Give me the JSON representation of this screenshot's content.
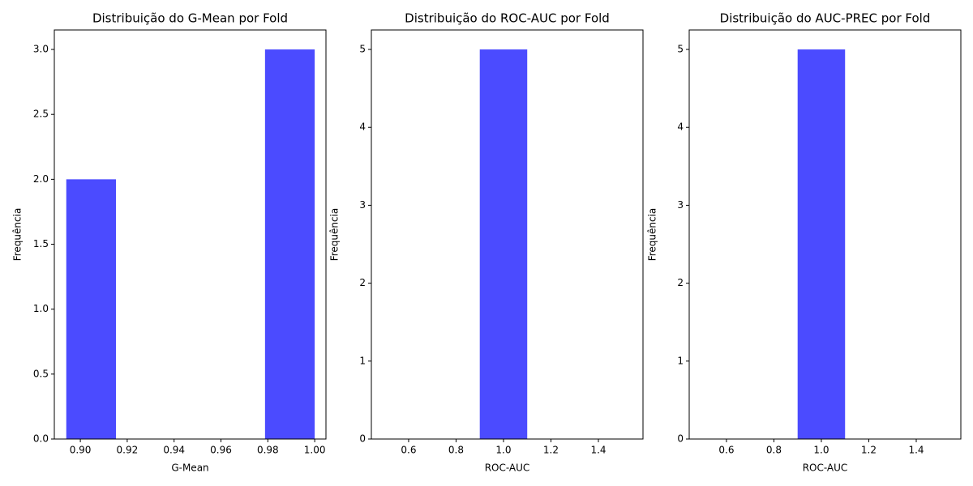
{
  "chart_data": [
    {
      "type": "histogram",
      "title": "Distribuição do G-Mean por Fold",
      "x_label": "G-Mean",
      "y_label": "Frequência",
      "color": "#4b4bff",
      "bins": [
        0.894,
        0.9152,
        0.9364,
        0.9576,
        0.9788,
        1.0
      ],
      "values": [
        2,
        0,
        0,
        0,
        3
      ],
      "xlim": [
        0.8889,
        1.0048
      ],
      "xticks": [
        {
          "value": 0.9,
          "label": "0.90"
        },
        0.92,
        0.94,
        0.96,
        0.98,
        {
          "value": 1.0,
          "label": "1.00"
        }
      ],
      "ylim": [
        0,
        3.15
      ],
      "yticks": [
        {
          "value": 0,
          "label": "0.0"
        },
        0.5,
        {
          "value": 1,
          "label": "1.0"
        },
        1.5,
        {
          "value": 2,
          "label": "2.0"
        },
        2.5,
        {
          "value": 3,
          "label": "3.0"
        }
      ]
    },
    {
      "type": "histogram",
      "title": "Distribuição do ROC-AUC por Fold",
      "x_label": "ROC-AUC",
      "y_label": "Frequência",
      "color": "#4b4bff",
      "bins": [
        0.5,
        0.7,
        0.9,
        1.1,
        1.3,
        1.5
      ],
      "values": [
        0,
        0,
        5,
        0,
        0
      ],
      "xlim": [
        0.443,
        1.588
      ],
      "xticks": [
        0.6,
        0.8,
        {
          "value": 1.0,
          "label": "1.0"
        },
        1.2,
        1.4
      ],
      "ylim": [
        0,
        5.25
      ],
      "yticks": [
        0,
        1,
        2,
        3,
        4,
        5
      ]
    },
    {
      "type": "histogram",
      "title": "Distribuição do AUC-PREC por Fold",
      "x_label": "ROC-AUC",
      "y_label": "Frequência",
      "color": "#4b4bff",
      "bins": [
        0.5,
        0.7,
        0.9,
        1.1,
        1.3,
        1.5
      ],
      "values": [
        0,
        0,
        5,
        0,
        0
      ],
      "xlim": [
        0.443,
        1.588
      ],
      "xticks": [
        0.6,
        0.8,
        {
          "value": 1.0,
          "label": "1.0"
        },
        1.2,
        1.4
      ],
      "ylim": [
        0,
        5.25
      ],
      "yticks": [
        0,
        1,
        2,
        3,
        4,
        5
      ]
    }
  ]
}
